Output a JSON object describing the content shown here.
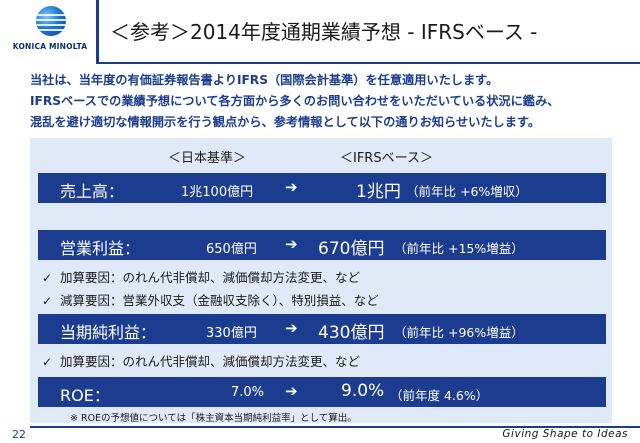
{
  "logo": {
    "text": "KONICA MINOLTA"
  },
  "title": "＜参考＞2014年度通期業績予想 - IFRSベース -",
  "intro": [
    "当社は、当年度の有価証券報告書よりIFRS（国際会計基準）を任意適用いたします。",
    "IFRSベースでの業績予想について各方面から多くのお問い合わせをいただいている状況に鑑み、",
    "混乱を避け適切な情報開示を行う観点から、参考情報として以下の通りお知らせいたします。"
  ],
  "headers": {
    "jp_gaap": "＜日本基準＞",
    "ifrs": "＜IFRSベース＞"
  },
  "rows": [
    {
      "label": "売上高：",
      "old": "1兆100億円",
      "arrow": "➔",
      "new": "1兆円",
      "yoy": "（前年比 +6%増収）"
    },
    {
      "label": "営業利益：",
      "old": "650億円",
      "arrow": "➔",
      "new": "670億円",
      "yoy": "（前年比 +15%増益）"
    },
    {
      "label": "当期純利益：",
      "old": "330億円",
      "arrow": "➔",
      "new": "430億円",
      "yoy": "（前年比 +96%増益）"
    },
    {
      "label": "ROE：",
      "old": "7.0%",
      "arrow": "➔",
      "new": "9.0%",
      "yoy": "（前年度 4.6%）"
    }
  ],
  "checks": {
    "op_increase": "加算要因：のれん代非償却、減価償却方法変更、など",
    "op_decrease": "減算要因：営業外収支（金融収支除く）、特別損益、など",
    "ni_increase": "加算要因：のれん代非償却、減価償却方法変更、など"
  },
  "check_mark": "✓",
  "note": "※ ROEの予想値については「株主資本当期純利益率」として算出。",
  "footer": {
    "page": "22",
    "tagline": "Giving Shape to Ideas"
  }
}
